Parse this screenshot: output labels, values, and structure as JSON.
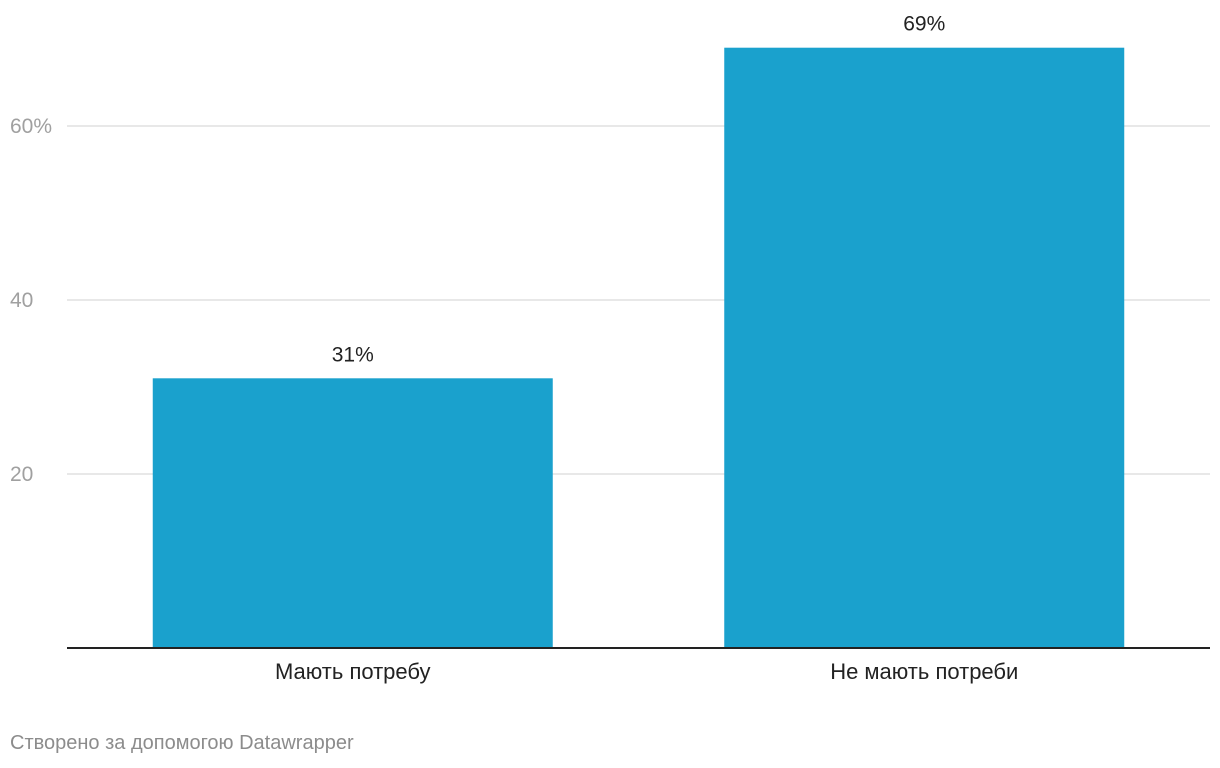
{
  "chart_data": {
    "type": "bar",
    "categories": [
      "Мають потребу",
      "Не мають потреби"
    ],
    "values": [
      31,
      69
    ],
    "value_labels": [
      "31%",
      "69%"
    ],
    "title": "",
    "xlabel": "",
    "ylabel": "",
    "ylim": [
      0,
      69
    ],
    "yticks": [
      {
        "value": 20,
        "label": "20"
      },
      {
        "value": 40,
        "label": "40"
      },
      {
        "value": 60,
        "label": "60%"
      }
    ],
    "grid": true,
    "legend": "none",
    "bar_color": "#1aa1cd",
    "grid_color": "#e0e0e0",
    "axis_color": "#222222",
    "tick_label_color": "#a0a0a0",
    "category_label_color": "#222222",
    "value_label_color": "#222222"
  },
  "footer": {
    "credit": "Створено за допомогою Datawrapper"
  }
}
